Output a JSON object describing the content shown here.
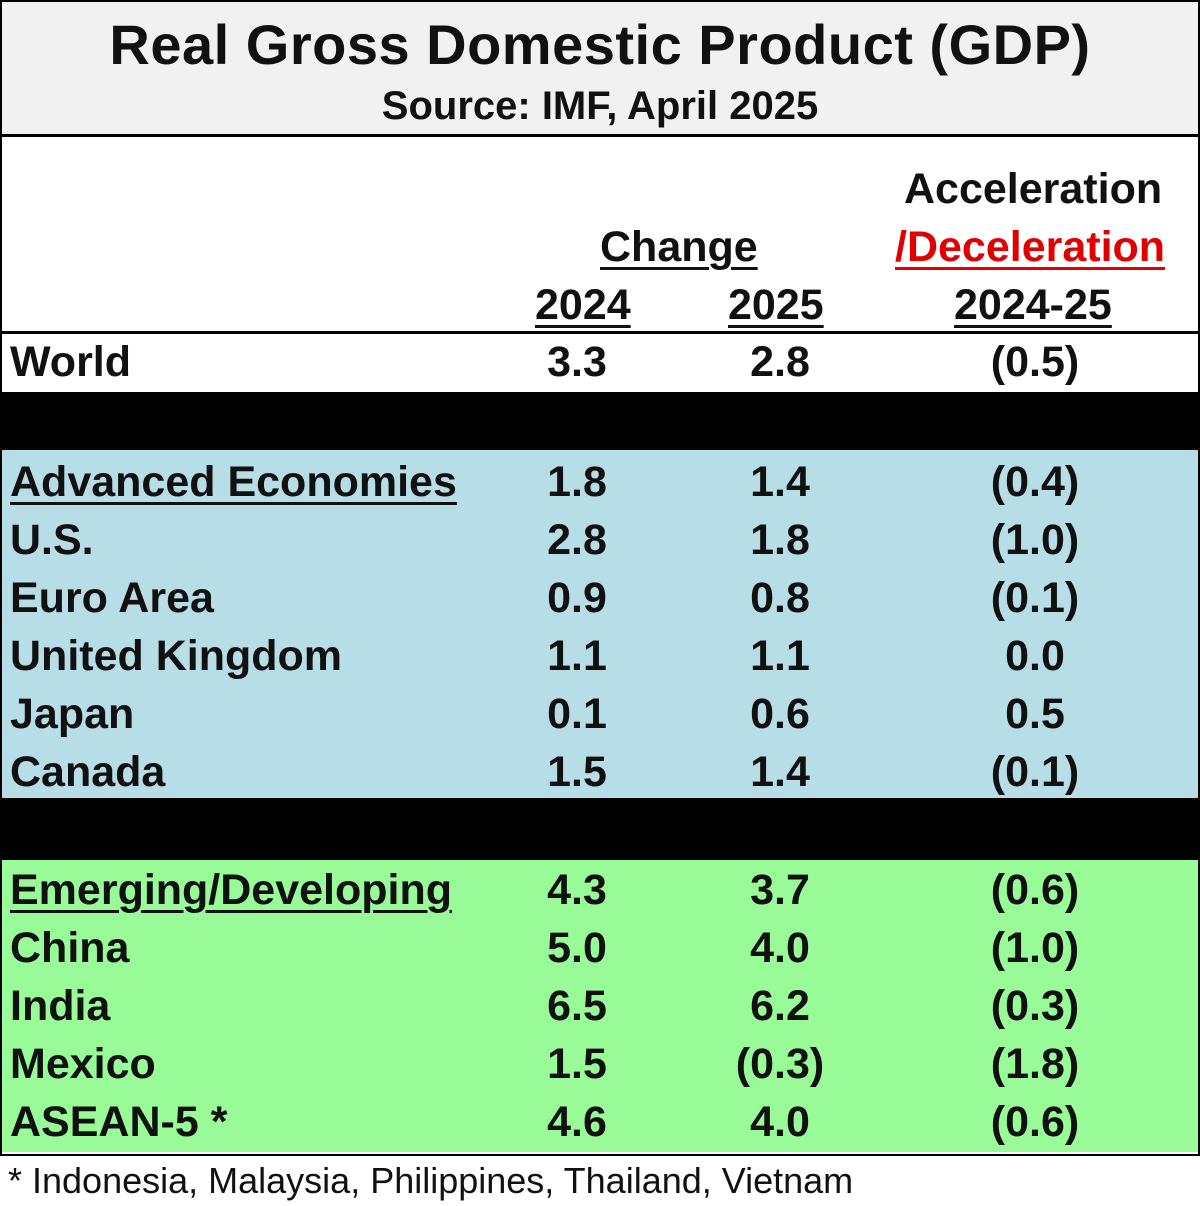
{
  "title": "Real Gross Domestic Product (GDP)",
  "subtitle": "Source:  IMF, April 2025",
  "headers": {
    "change": "Change",
    "year_2024": "2024",
    "year_2025": "2025",
    "accel_line1": "Acceleration",
    "accel_line2": "/Deceleration",
    "accel_period": "2024-25"
  },
  "world": {
    "label": "World",
    "v2024": "3.3",
    "v2025": "2.8",
    "accel": "(0.5)"
  },
  "advanced": [
    {
      "label": "Advanced Economies",
      "v2024": "1.8",
      "v2025": "1.4",
      "accel": "(0.4)"
    },
    {
      "label": "U.S.",
      "v2024": "2.8",
      "v2025": "1.8",
      "accel": "(1.0)"
    },
    {
      "label": "Euro Area",
      "v2024": "0.9",
      "v2025": "0.8",
      "accel": "(0.1)"
    },
    {
      "label": "United Kingdom",
      "v2024": "1.1",
      "v2025": "1.1",
      "accel": "0.0"
    },
    {
      "label": "Japan",
      "v2024": "0.1",
      "v2025": "0.6",
      "accel": "0.5"
    },
    {
      "label": "Canada",
      "v2024": "1.5",
      "v2025": "1.4",
      "accel": "(0.1)"
    }
  ],
  "emerging": [
    {
      "label": "Emerging/Developing",
      "v2024": "4.3",
      "v2025": "3.7",
      "accel": "(0.6)"
    },
    {
      "label": "China",
      "v2024": "5.0",
      "v2025": "4.0",
      "accel": "(1.0)"
    },
    {
      "label": "India",
      "v2024": "6.5",
      "v2025": "6.2",
      "accel": "(0.3)"
    },
    {
      "label": "Mexico",
      "v2024": "1.5",
      "v2025": "(0.3)",
      "accel": "(1.8)"
    },
    {
      "label": "ASEAN-5 *",
      "v2024": "4.6",
      "v2025": "4.0",
      "accel": "(0.6)"
    }
  ],
  "footnote": "* Indonesia, Malaysia, Philippines, Thailand, Vietnam",
  "colors": {
    "negative": "#e00000",
    "advanced_band": "#b7dde6",
    "emerging_band": "#98fb98"
  }
}
